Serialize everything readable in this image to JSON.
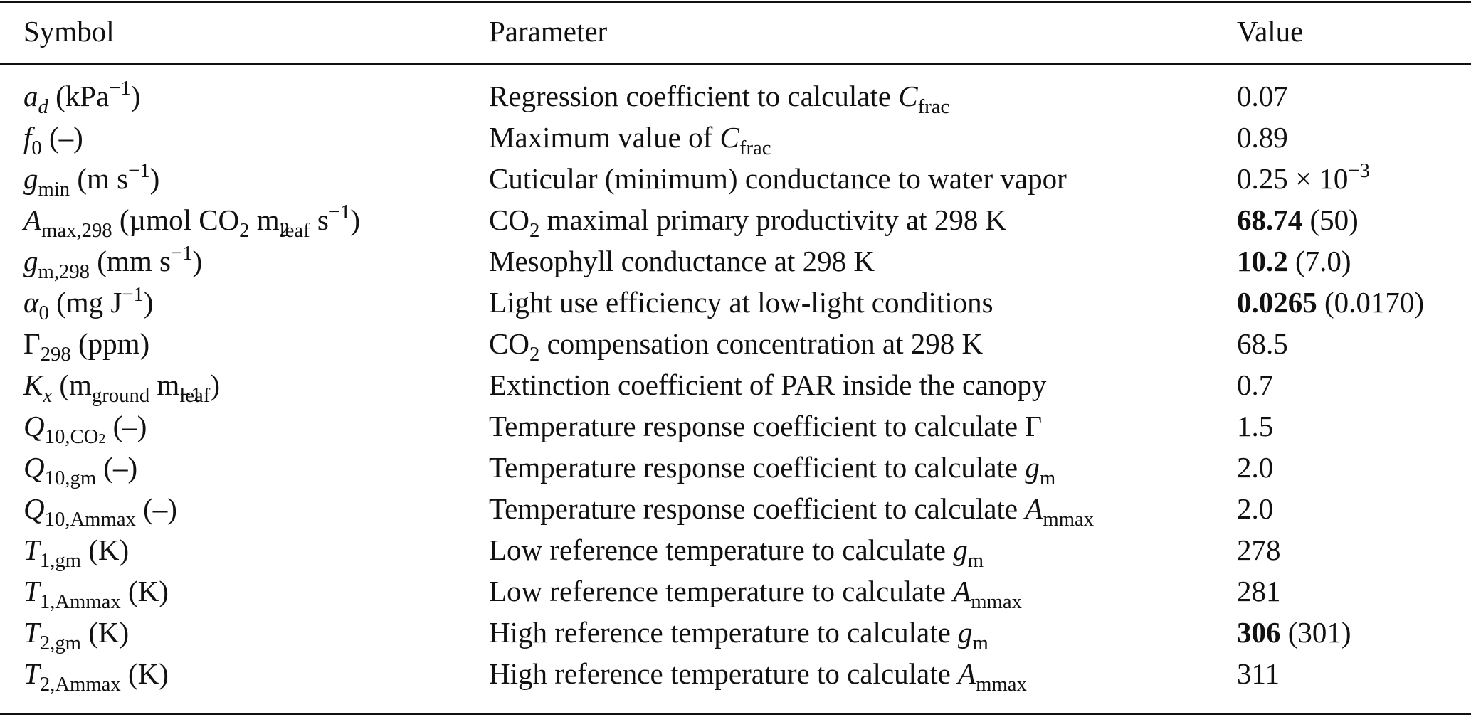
{
  "headers": {
    "symbol": "Symbol",
    "parameter": "Parameter",
    "value": "Value"
  },
  "rows": [
    {
      "symbol": "a_d (kPa^−1)",
      "parameter": "Regression coefficient to calculate C_frac",
      "value": "0.07",
      "value_bold": "",
      "value_paren": ""
    },
    {
      "symbol": "f_0 (–)",
      "parameter": "Maximum value of C_frac",
      "value": "0.89",
      "value_bold": "",
      "value_paren": ""
    },
    {
      "symbol": "g_min (m s^−1)",
      "parameter": "Cuticular (minimum) conductance to water vapor",
      "value": "0.25 × 10^−3",
      "value_bold": "",
      "value_paren": ""
    },
    {
      "symbol": "A_max,298 (µmol CO2 m^2_leaf s^−1)",
      "parameter": "CO2 maximal primary productivity at 298 K",
      "value": "",
      "value_bold": "68.74",
      "value_paren": "(50)"
    },
    {
      "symbol": "g_m,298 (mm s^−1)",
      "parameter": "Mesophyll conductance at 298 K",
      "value": "",
      "value_bold": "10.2",
      "value_paren": "(7.0)"
    },
    {
      "symbol": "α_0 (mg J^−1)",
      "parameter": "Light use efficiency at low-light conditions",
      "value": "",
      "value_bold": "0.0265",
      "value_paren": "(0.0170)"
    },
    {
      "symbol": "Γ_298 (ppm)",
      "parameter": "CO2 compensation concentration at 298 K",
      "value": "68.5",
      "value_bold": "",
      "value_paren": ""
    },
    {
      "symbol": "K_x (m_ground m^−1_leaf)",
      "parameter": "Extinction coefficient of PAR inside the canopy",
      "value": "0.7",
      "value_bold": "",
      "value_paren": ""
    },
    {
      "symbol": "Q_10,CO2 (–)",
      "parameter": "Temperature response coefficient to calculate Γ",
      "value": "1.5",
      "value_bold": "",
      "value_paren": ""
    },
    {
      "symbol": "Q_10,gm (–)",
      "parameter": "Temperature response coefficient to calculate g_m",
      "value": "2.0",
      "value_bold": "",
      "value_paren": ""
    },
    {
      "symbol": "Q_10,Ammax (–)",
      "parameter": "Temperature response coefficient to calculate A_mmax",
      "value": "2.0",
      "value_bold": "",
      "value_paren": ""
    },
    {
      "symbol": "T_1,gm (K)",
      "parameter": "Low reference temperature to calculate g_m",
      "value": "278",
      "value_bold": "",
      "value_paren": ""
    },
    {
      "symbol": "T_1,Ammax (K)",
      "parameter": "Low reference temperature to calculate A_mmax",
      "value": "281",
      "value_bold": "",
      "value_paren": ""
    },
    {
      "symbol": "T_2,gm (K)",
      "parameter": "High reference temperature to calculate g_m",
      "value": "",
      "value_bold": "306",
      "value_paren": "(301)"
    },
    {
      "symbol": "T_2,Ammax (K)",
      "parameter": "High reference temperature to calculate A_mmax",
      "value": "311",
      "value_bold": "",
      "value_paren": ""
    }
  ]
}
